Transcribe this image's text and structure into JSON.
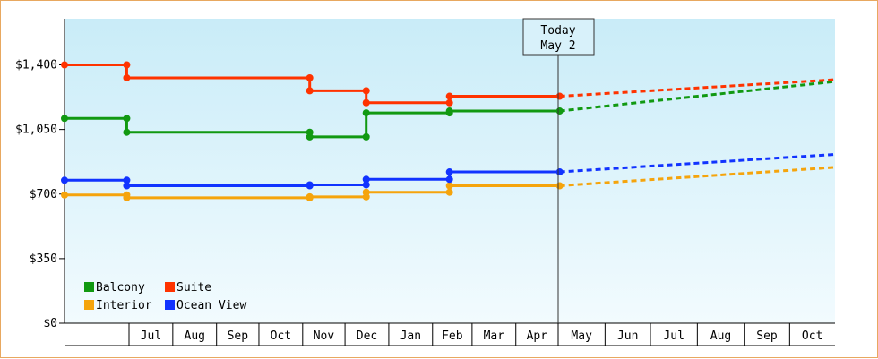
{
  "chart_data": {
    "type": "line",
    "title": "",
    "xlabel": "",
    "ylabel": "",
    "ylim": [
      0,
      1650
    ],
    "y_ticks": [
      0,
      350,
      700,
      1050,
      1400
    ],
    "y_tick_labels": [
      "$0",
      "$350",
      "$700",
      "$1,050",
      "$1,400"
    ],
    "x_tick_labels": [
      "Jul",
      "Aug",
      "Sep",
      "Oct",
      "Nov",
      "Dec",
      "Jan",
      "Feb",
      "Mar",
      "Apr",
      "May",
      "Jun",
      "Jul",
      "Aug",
      "Sep",
      "Oct"
    ],
    "grid": false,
    "background": "light blue gradient",
    "legend": {
      "placement": "bottom-left",
      "columns": 2
    },
    "today_marker": {
      "label_line1": "Today",
      "label_line2": "May 2"
    },
    "series": [
      {
        "name": "Balcony",
        "color": "#119911",
        "points": [
          [
            "2025-06-03",
            1110
          ],
          [
            "2025-06-30",
            1110
          ],
          [
            "2025-06-30",
            1035
          ],
          [
            "2025-11-06",
            1035
          ],
          [
            "2025-11-06",
            1010
          ],
          [
            "2025-12-16",
            1010
          ],
          [
            "2025-12-16",
            1140
          ],
          [
            "2026-02-13",
            1140
          ],
          [
            "2026-02-13",
            1150
          ],
          [
            "2026-05-02",
            1150
          ]
        ],
        "forecast": [
          [
            "2026-05-02",
            1150
          ],
          [
            "2026-10-31",
            1310
          ]
        ]
      },
      {
        "name": "Suite",
        "color": "#ff3300",
        "points": [
          [
            "2025-06-03",
            1400
          ],
          [
            "2025-06-30",
            1400
          ],
          [
            "2025-06-30",
            1330
          ],
          [
            "2025-11-06",
            1330
          ],
          [
            "2025-11-06",
            1260
          ],
          [
            "2025-12-16",
            1260
          ],
          [
            "2025-12-16",
            1195
          ],
          [
            "2026-02-13",
            1195
          ],
          [
            "2026-02-13",
            1230
          ],
          [
            "2026-05-02",
            1230
          ]
        ],
        "forecast": [
          [
            "2026-05-02",
            1230
          ],
          [
            "2026-10-31",
            1320
          ]
        ]
      },
      {
        "name": "Interior",
        "color": "#f5a40c",
        "points": [
          [
            "2025-06-03",
            695
          ],
          [
            "2025-06-30",
            695
          ],
          [
            "2025-06-30",
            680
          ],
          [
            "2025-11-06",
            680
          ],
          [
            "2025-11-06",
            685
          ],
          [
            "2025-12-16",
            685
          ],
          [
            "2025-12-16",
            710
          ],
          [
            "2026-02-13",
            710
          ],
          [
            "2026-02-13",
            745
          ],
          [
            "2026-05-02",
            745
          ]
        ],
        "forecast": [
          [
            "2026-05-02",
            745
          ],
          [
            "2026-10-31",
            845
          ]
        ]
      },
      {
        "name": "Ocean View",
        "color": "#1133ff",
        "points": [
          [
            "2025-06-03",
            775
          ],
          [
            "2025-06-30",
            775
          ],
          [
            "2025-06-30",
            745
          ],
          [
            "2025-11-06",
            745
          ],
          [
            "2025-11-06",
            750
          ],
          [
            "2025-12-16",
            750
          ],
          [
            "2025-12-16",
            780
          ],
          [
            "2026-02-13",
            780
          ],
          [
            "2026-02-13",
            820
          ],
          [
            "2026-05-02",
            820
          ]
        ],
        "forecast": [
          [
            "2026-05-02",
            820
          ],
          [
            "2026-10-31",
            915
          ]
        ]
      }
    ]
  }
}
